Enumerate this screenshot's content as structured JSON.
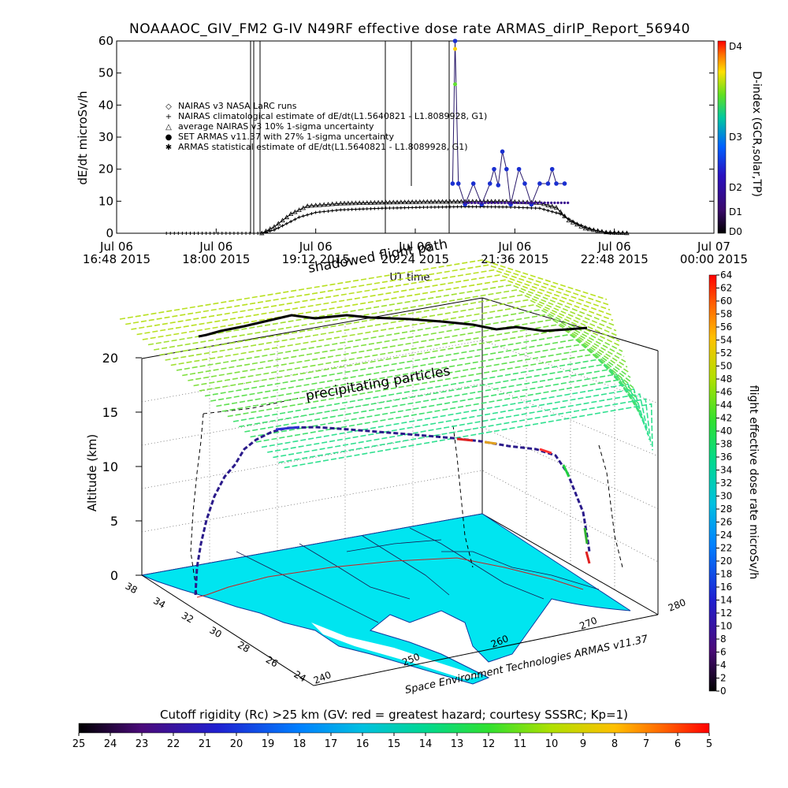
{
  "title": "NOAAAOC_GIV_FM2 G-IV    N49RF   effective dose rate ARMAS_dirIP_Report_56940",
  "chart_data": [
    {
      "type": "line",
      "panel": "time-series",
      "ylabel": "dE/dt microSv/h",
      "xlabel": "UT time",
      "ylim": [
        0,
        60
      ],
      "y_ticks": [
        "0",
        "10",
        "20",
        "30",
        "40",
        "50",
        "60"
      ],
      "x_ticks": [
        {
          "line1": "Jul 06",
          "line2": "16:48 2015"
        },
        {
          "line1": "Jul 06",
          "line2": "18:00 2015"
        },
        {
          "line1": "Jul 06",
          "line2": "19:12 2015"
        },
        {
          "line1": "Jul 06",
          "line2": "20:24 2015"
        },
        {
          "line1": "Jul 06",
          "line2": "21:36 2015"
        },
        {
          "line1": "Jul 06",
          "line2": "22:48 2015"
        },
        {
          "line1": "Jul 07",
          "line2": "00:00 2015"
        }
      ],
      "legend": [
        {
          "symbol": "◇",
          "label": "NAIRAS v3 NASA LaRC runs",
          "color": "#000000"
        },
        {
          "symbol": "+",
          "label": "NAIRAS climatological estimate of dE/dt(L1.5640821 - L1.8089928, G1)",
          "color": "#000000"
        },
        {
          "symbol": "△",
          "label": "average NAIRAS v3 10% 1-sigma uncertainty",
          "color": "#000000"
        },
        {
          "symbol": "●",
          "label": "SET ARMAS v11.37 with 27% 1-sigma uncertainty",
          "color": "#1a2fd0"
        },
        {
          "symbol": "✱",
          "label": "ARMAS statistical estimate of dE/dt(L1.5640821 - L1.8089928, G1)",
          "color": "#000000"
        }
      ],
      "series": [
        {
          "name": "NAIRAS climatological estimate of dE/dt(L1.5640821 - L1.8089928, G1)",
          "points": [
            [
              17.4,
              0
            ],
            [
              18.55,
              0
            ],
            [
              18.7,
              1
            ],
            [
              18.85,
              3
            ],
            [
              19.0,
              5
            ],
            [
              19.2,
              6.5
            ],
            [
              19.5,
              7.3
            ],
            [
              20.0,
              7.8
            ],
            [
              20.5,
              8.1
            ],
            [
              21.0,
              8.3
            ],
            [
              21.5,
              8.2
            ],
            [
              21.9,
              7.8
            ],
            [
              22.15,
              6
            ],
            [
              22.35,
              3
            ],
            [
              22.55,
              1
            ],
            [
              22.75,
              0
            ],
            [
              23.0,
              0
            ]
          ]
        },
        {
          "name": "NAIRAS v3 NASA LaRC runs",
          "points": [
            [
              18.55,
              0
            ],
            [
              18.7,
              2
            ],
            [
              18.9,
              6
            ],
            [
              19.1,
              8.5
            ],
            [
              19.5,
              9.3
            ],
            [
              20.0,
              9.6
            ],
            [
              20.5,
              9.8
            ],
            [
              21.0,
              9.9
            ],
            [
              21.5,
              9.9
            ],
            [
              21.9,
              9.5
            ],
            [
              22.1,
              8
            ],
            [
              22.25,
              4
            ],
            [
              22.45,
              1.5
            ],
            [
              22.7,
              0.3
            ],
            [
              23.0,
              0
            ]
          ]
        },
        {
          "name": "SET ARMAS v11.37 with 27% 1-sigma uncertainty",
          "points": [
            [
              20.85,
              15.5
            ],
            [
              20.88,
              60
            ],
            [
              20.92,
              15.5
            ],
            [
              21.0,
              9
            ],
            [
              21.1,
              15.5
            ],
            [
              21.2,
              9
            ],
            [
              21.3,
              15.5
            ],
            [
              21.35,
              20
            ],
            [
              21.4,
              15
            ],
            [
              21.45,
              25.5
            ],
            [
              21.5,
              20
            ],
            [
              21.55,
              9
            ],
            [
              21.65,
              20
            ],
            [
              21.72,
              15.5
            ],
            [
              21.8,
              9
            ],
            [
              21.9,
              15.5
            ],
            [
              22.0,
              15.5
            ],
            [
              22.05,
              20
            ],
            [
              22.1,
              15.5
            ],
            [
              22.2,
              15.5
            ]
          ]
        }
      ],
      "right_axis": {
        "label": "D-index (GCR,solar,TP)",
        "ticks": [
          "D0",
          "D1",
          "D2",
          "D3",
          "D4"
        ]
      }
    },
    {
      "type": "scatter",
      "panel": "3d-flight-path",
      "zlabel": "Altitude (km)",
      "z_ticks": [
        "0",
        "5",
        "10",
        "15",
        "20"
      ],
      "lat_ticks": [
        "38",
        "34",
        "32",
        "30",
        "28",
        "26",
        "24"
      ],
      "lon_ticks": [
        "240",
        "250",
        "260",
        "270",
        "280"
      ],
      "annotations": [
        "shadowed flight path",
        "precipitating particles"
      ],
      "credit": "Space Environment Technologies ARMAS v11.37",
      "colorbar_right": {
        "label": "flight effective dose rate microSv/h",
        "ticks": [
          "0",
          "2",
          "4",
          "6",
          "8",
          "10",
          "12",
          "14",
          "16",
          "18",
          "20",
          "22",
          "24",
          "26",
          "28",
          "30",
          "32",
          "34",
          "36",
          "38",
          "40",
          "42",
          "44",
          "46",
          "48",
          "50",
          "52",
          "54",
          "56",
          "58",
          "60",
          "62",
          "64"
        ]
      },
      "colorbar_bottom": {
        "label": "Cutoff rigidity (Rc) >25 km (GV: red = greatest hazard; courtesy SSSRC; Kp=1)",
        "ticks": [
          "25",
          "24",
          "23",
          "22",
          "21",
          "20",
          "19",
          "18",
          "17",
          "16",
          "15",
          "14",
          "13",
          "12",
          "11",
          "10",
          "9",
          "8",
          "7",
          "6",
          "5"
        ]
      },
      "colors": {
        "map_fill": "#00e5f0",
        "grid_line": "#6fd84a"
      }
    }
  ]
}
